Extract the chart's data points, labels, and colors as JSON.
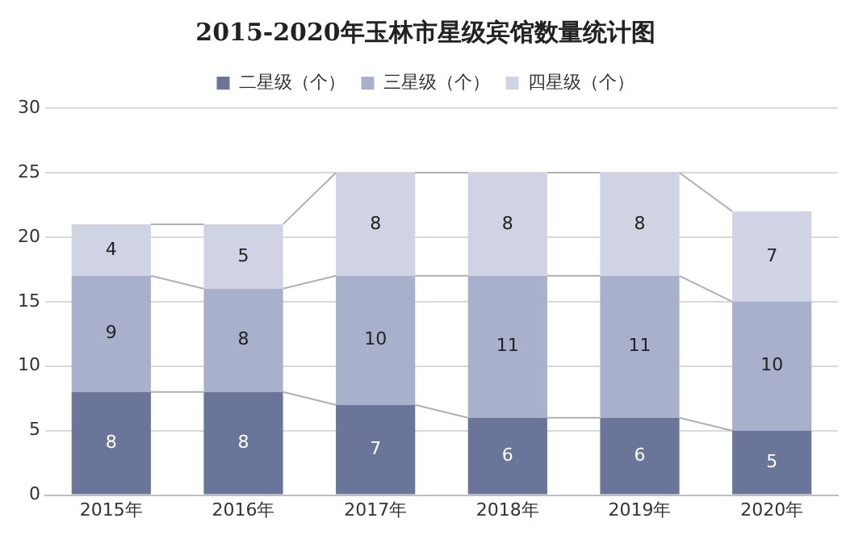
{
  "chart_data": {
    "type": "bar",
    "title": "2015-2020年玉林市星级宾馆数量统计图",
    "categories": [
      "2015年",
      "2016年",
      "2017年",
      "2018年",
      "2019年",
      "2020年"
    ],
    "stacked": true,
    "series": [
      {
        "name": "二星级（个）",
        "color": "#6b7499",
        "values": [
          8,
          8,
          7,
          6,
          6,
          5
        ]
      },
      {
        "name": "三星级（个）",
        "color": "#a9b0cc",
        "values": [
          9,
          8,
          10,
          11,
          11,
          10
        ]
      },
      {
        "name": "四星级（个）",
        "color": "#cfd3e3",
        "values": [
          4,
          5,
          8,
          8,
          8,
          7
        ]
      }
    ],
    "ylim": [
      0,
      30
    ],
    "yticks": [
      0,
      5,
      10,
      15,
      20,
      25,
      30
    ],
    "grid": "y",
    "legend": "top",
    "data_labels": true
  }
}
